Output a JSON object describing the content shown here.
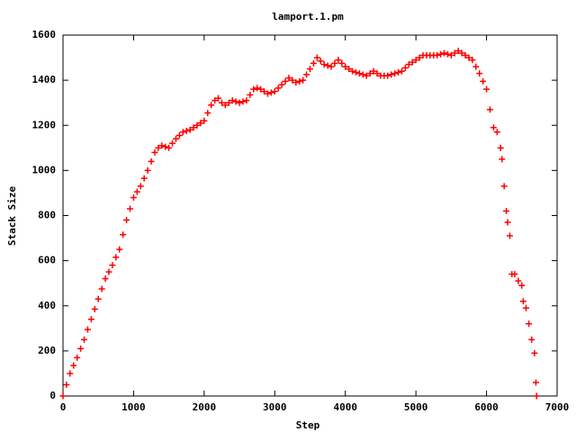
{
  "chart_data": {
    "type": "scatter",
    "title": "lamport.1.pm",
    "x_label": "Step",
    "y_label": "Stack Size",
    "color": "#ff0000",
    "marker": "+",
    "grid": false,
    "xlim": [
      0,
      7000
    ],
    "ylim": [
      0,
      1600
    ],
    "xticks": [
      0,
      1000,
      2000,
      3000,
      4000,
      5000,
      6000,
      7000
    ],
    "yticks": [
      0,
      200,
      400,
      600,
      800,
      1000,
      1200,
      1400,
      1600
    ],
    "x": [
      0,
      50,
      100,
      150,
      200,
      250,
      300,
      350,
      400,
      450,
      500,
      550,
      600,
      650,
      700,
      750,
      800,
      850,
      900,
      950,
      1000,
      1050,
      1100,
      1150,
      1200,
      1250,
      1300,
      1350,
      1400,
      1450,
      1500,
      1550,
      1600,
      1650,
      1700,
      1750,
      1800,
      1850,
      1900,
      1950,
      2000,
      2050,
      2100,
      2150,
      2200,
      2250,
      2300,
      2350,
      2400,
      2450,
      2500,
      2550,
      2600,
      2650,
      2700,
      2750,
      2800,
      2850,
      2900,
      2950,
      3000,
      3050,
      3100,
      3150,
      3200,
      3250,
      3300,
      3350,
      3400,
      3450,
      3500,
      3550,
      3600,
      3650,
      3700,
      3750,
      3800,
      3850,
      3900,
      3950,
      4000,
      4050,
      4100,
      4150,
      4200,
      4250,
      4300,
      4350,
      4400,
      4450,
      4500,
      4550,
      4600,
      4650,
      4700,
      4750,
      4800,
      4850,
      4900,
      4950,
      5000,
      5050,
      5100,
      5150,
      5200,
      5250,
      5300,
      5350,
      5400,
      5450,
      5500,
      5550,
      5600,
      5650,
      5700,
      5750,
      5800,
      5850,
      5900,
      5950,
      6000,
      6050,
      6100,
      6150,
      6200,
      6220,
      6250,
      6280,
      6300,
      6330,
      6360,
      6400,
      6450,
      6500,
      6520,
      6560,
      6600,
      6640,
      6680,
      6700,
      6710
    ],
    "y": [
      0,
      50,
      100,
      135,
      170,
      210,
      250,
      295,
      340,
      385,
      430,
      475,
      520,
      550,
      580,
      615,
      650,
      715,
      780,
      830,
      880,
      905,
      930,
      965,
      1000,
      1040,
      1080,
      1100,
      1110,
      1105,
      1100,
      1120,
      1140,
      1155,
      1170,
      1175,
      1180,
      1190,
      1200,
      1210,
      1220,
      1255,
      1290,
      1310,
      1320,
      1300,
      1290,
      1300,
      1310,
      1305,
      1300,
      1305,
      1310,
      1335,
      1360,
      1365,
      1360,
      1350,
      1340,
      1345,
      1350,
      1365,
      1380,
      1395,
      1410,
      1400,
      1390,
      1395,
      1400,
      1425,
      1450,
      1475,
      1500,
      1485,
      1470,
      1465,
      1460,
      1475,
      1490,
      1475,
      1460,
      1450,
      1440,
      1435,
      1430,
      1425,
      1420,
      1430,
      1440,
      1430,
      1420,
      1420,
      1420,
      1425,
      1430,
      1435,
      1440,
      1455,
      1470,
      1480,
      1490,
      1500,
      1510,
      1510,
      1510,
      1510,
      1510,
      1515,
      1520,
      1515,
      1510,
      1520,
      1530,
      1520,
      1510,
      1500,
      1490,
      1460,
      1430,
      1395,
      1360,
      1270,
      1190,
      1170,
      1100,
      1050,
      930,
      820,
      770,
      710,
      540,
      540,
      510,
      490,
      420,
      390,
      320,
      250,
      190,
      60,
      0
    ]
  }
}
